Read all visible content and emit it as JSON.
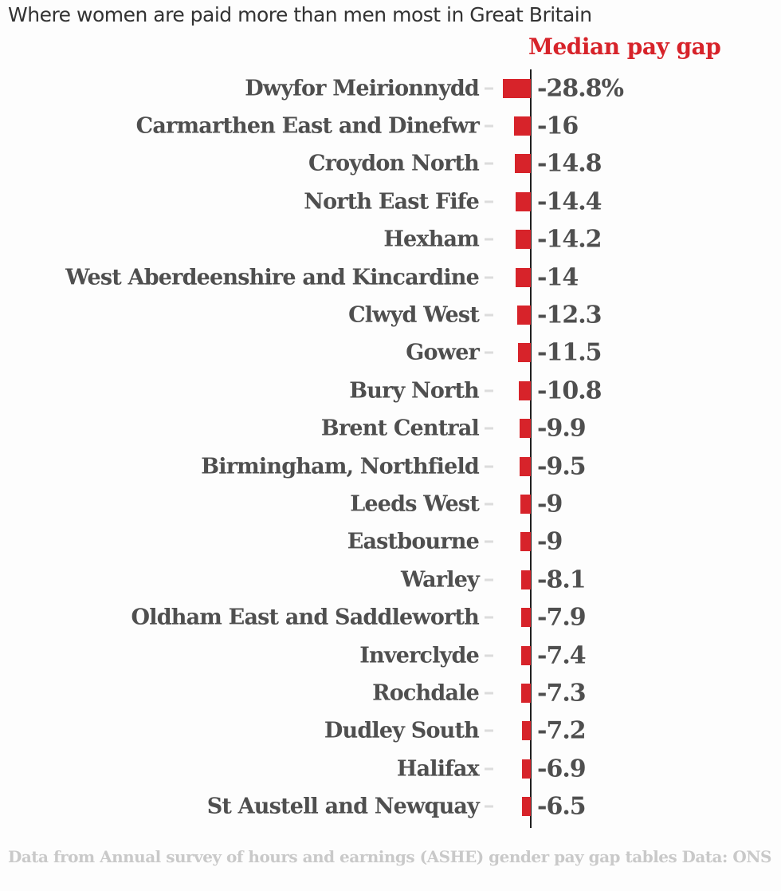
{
  "title": "Where women are paid more than men most in Great Britain",
  "legend": "Median pay gap",
  "footer": {
    "source_note": "Data from Annual survey of hours and earnings (ASHE) gender pay gap tables",
    "credit": "Data: ONS"
  },
  "colors": {
    "bar": "#d7232a",
    "legend_text": "#d7232a",
    "label_text": "#4f4f4f",
    "axis": "#1f1f1f",
    "footer_text": "#c9c9c9",
    "tick": "#dcdcdc",
    "background": "#fdfdfd"
  },
  "chart_data": {
    "type": "bar",
    "orientation": "horizontal",
    "title": "Where women are paid more than men most in Great Britain",
    "legend": "Median pay gap",
    "legend_position": "top-right",
    "unit": "%",
    "xlim": [
      -30,
      0
    ],
    "grid": false,
    "categories": [
      "Dwyfor Meirionnydd",
      "Carmarthen East and Dinefwr",
      "Croydon North",
      "North East Fife",
      "Hexham",
      "West Aberdeenshire and Kincardine",
      "Clwyd West",
      "Gower",
      "Bury North",
      "Brent Central",
      "Birmingham, Northfield",
      "Leeds West",
      "Eastbourne",
      "Warley",
      "Oldham East and Saddleworth",
      "Inverclyde",
      "Rochdale",
      "Dudley South",
      "Halifax",
      "St Austell and Newquay"
    ],
    "values": [
      -28.8,
      -16,
      -14.8,
      -14.4,
      -14.2,
      -14,
      -12.3,
      -11.5,
      -10.8,
      -9.9,
      -9.5,
      -9,
      -9,
      -8.1,
      -7.9,
      -7.4,
      -7.3,
      -7.2,
      -6.9,
      -6.5
    ],
    "value_labels": [
      "-28.8%",
      "-16",
      "-14.8",
      "-14.4",
      "-14.2",
      "-14",
      "-12.3",
      "-11.5",
      "-10.8",
      "-9.9",
      "-9.5",
      "-9",
      "-9",
      "-8.1",
      "-7.9",
      "-7.4",
      "-7.3",
      "-7.2",
      "-6.9",
      "-6.5"
    ]
  }
}
